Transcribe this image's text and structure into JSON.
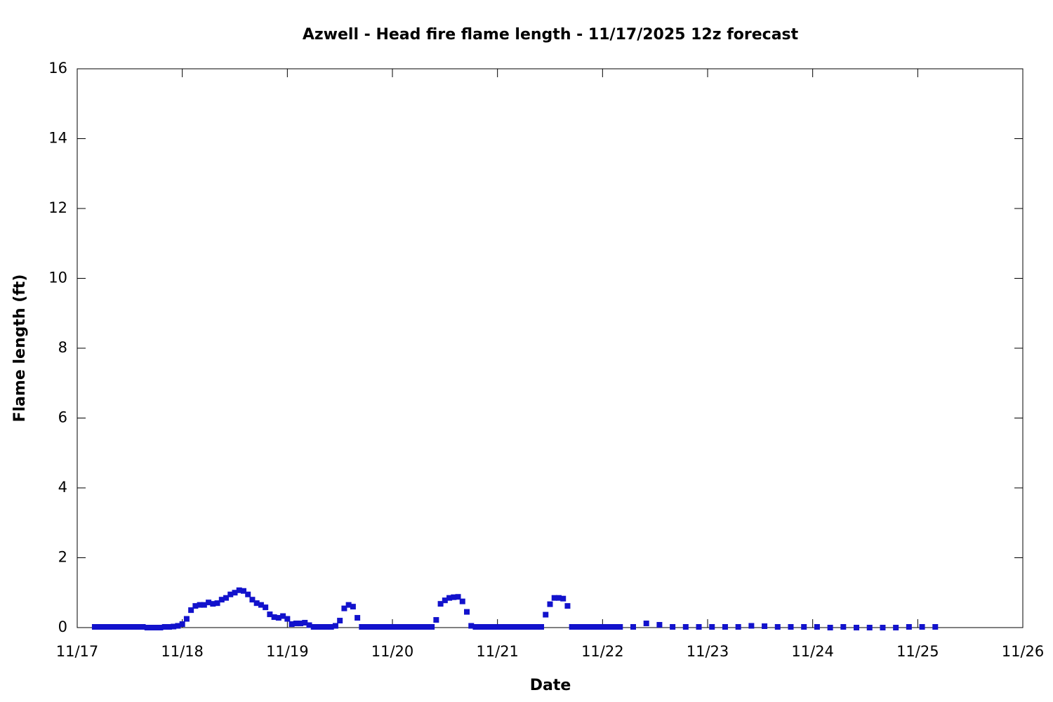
{
  "chart_data": {
    "type": "scatter",
    "title": "Azwell - Head fire flame length - 11/17/2025 12z forecast",
    "x_label": "Date",
    "y_label": "Flame length (ft)",
    "x": [
      4,
      5,
      6,
      7,
      8,
      9,
      10,
      11,
      12,
      13,
      14,
      15,
      16,
      17,
      18,
      19,
      20,
      21,
      22,
      23,
      24,
      25,
      26,
      27,
      28,
      29,
      30,
      31,
      32,
      33,
      34,
      35,
      36,
      37,
      38,
      39,
      40,
      41,
      42,
      43,
      44,
      45,
      46,
      47,
      48,
      49,
      50,
      51,
      52,
      53,
      54,
      55,
      56,
      57,
      58,
      59,
      60,
      61,
      62,
      63,
      64,
      65,
      66,
      67,
      68,
      69,
      70,
      71,
      72,
      73,
      74,
      75,
      76,
      77,
      78,
      79,
      80,
      81,
      82,
      83,
      84,
      85,
      86,
      87,
      88,
      89,
      90,
      91,
      92,
      93,
      94,
      95,
      96,
      97,
      98,
      99,
      100,
      101,
      102,
      103,
      104,
      105,
      106,
      107,
      108,
      109,
      110,
      111,
      112,
      113,
      114,
      115,
      116,
      117,
      118,
      119,
      120,
      121,
      122,
      123,
      124,
      127,
      130,
      133,
      136,
      139,
      142,
      145,
      148,
      151,
      154,
      157,
      160,
      163,
      166,
      169,
      172,
      175,
      178,
      181,
      184,
      187,
      190,
      193,
      196
    ],
    "series": [
      {
        "name": "Flame length",
        "color": "#1212cc",
        "values": [
          0.02,
          0.02,
          0.02,
          0.02,
          0.02,
          0.02,
          0.02,
          0.02,
          0.02,
          0.02,
          0.02,
          0.02,
          0,
          0,
          0,
          0,
          0.02,
          0.02,
          0.03,
          0.05,
          0.1,
          0.25,
          0.5,
          0.62,
          0.65,
          0.65,
          0.72,
          0.68,
          0.7,
          0.8,
          0.85,
          0.95,
          1.0,
          1.07,
          1.05,
          0.95,
          0.8,
          0.7,
          0.65,
          0.58,
          0.38,
          0.3,
          0.28,
          0.33,
          0.25,
          0.1,
          0.12,
          0.12,
          0.14,
          0.07,
          0.02,
          0.02,
          0.02,
          0.02,
          0.02,
          0.05,
          0.2,
          0.55,
          0.65,
          0.6,
          0.28,
          0.02,
          0.02,
          0.02,
          0.02,
          0.02,
          0.02,
          0.02,
          0.02,
          0.02,
          0.02,
          0.02,
          0.02,
          0.02,
          0.02,
          0.02,
          0.02,
          0.02,
          0.22,
          0.68,
          0.78,
          0.85,
          0.87,
          0.88,
          0.75,
          0.45,
          0.05,
          0.02,
          0.02,
          0.02,
          0.02,
          0.02,
          0.02,
          0.02,
          0.02,
          0.02,
          0.02,
          0.02,
          0.02,
          0.02,
          0.02,
          0.02,
          0.02,
          0.37,
          0.67,
          0.85,
          0.85,
          0.83,
          0.62,
          0.02,
          0.02,
          0.02,
          0.02,
          0.02,
          0.02,
          0.02,
          0.02,
          0.02,
          0.02,
          0.02,
          0.02,
          0.02,
          0.12,
          0.08,
          0.02,
          0.02,
          0.02,
          0.02,
          0.02,
          0.02,
          0.05,
          0.04,
          0.02,
          0.02,
          0.02,
          0.02,
          0,
          0.02,
          0,
          0,
          0,
          0,
          0.02,
          0.02,
          0.02
        ]
      }
    ],
    "xlim": [
      0,
      216
    ],
    "xticks": [
      {
        "value": 0,
        "label": "11/17"
      },
      {
        "value": 24,
        "label": "11/18"
      },
      {
        "value": 48,
        "label": "11/19"
      },
      {
        "value": 72,
        "label": "11/20"
      },
      {
        "value": 96,
        "label": "11/21"
      },
      {
        "value": 120,
        "label": "11/22"
      },
      {
        "value": 144,
        "label": "11/23"
      },
      {
        "value": 168,
        "label": "11/24"
      },
      {
        "value": 192,
        "label": "11/25"
      },
      {
        "value": 216,
        "label": "11/26"
      }
    ],
    "ylim": [
      0,
      16
    ],
    "yticks": [
      0,
      2,
      4,
      6,
      8,
      10,
      12,
      14,
      16
    ],
    "grid": false
  }
}
